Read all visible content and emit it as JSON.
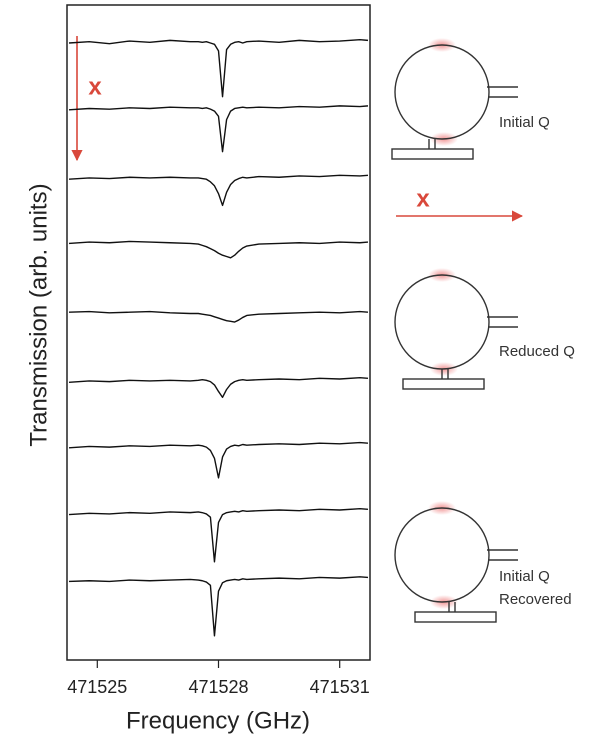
{
  "chart_data": {
    "type": "line",
    "xlabel": "Frequency (GHz)",
    "ylabel": "Transmission (arb. units)",
    "x": [
      471524.3,
      471524.8,
      471525.3,
      471525.8,
      471526.3,
      471526.8,
      471527.3,
      471527.5,
      471527.6,
      471527.7,
      471527.8,
      471527.9,
      471528.0,
      471528.1,
      471528.2,
      471528.3,
      471528.4,
      471528.5,
      471528.6,
      471528.7,
      471529.0,
      471529.5,
      471530.0,
      471530.5,
      471531.0,
      471531.5,
      471531.7
    ],
    "color": "#111111",
    "series": [
      {
        "values": [
          9.42,
          9.44,
          9.41,
          9.45,
          9.43,
          9.46,
          9.44,
          9.44,
          9.43,
          9.44,
          9.42,
          9.4,
          9.3,
          8.6,
          9.32,
          9.4,
          9.43,
          9.44,
          9.42,
          9.44,
          9.45,
          9.43,
          9.46,
          9.44,
          9.45,
          9.47,
          9.46
        ]
      },
      {
        "values": [
          8.4,
          8.42,
          8.41,
          8.43,
          8.42,
          8.44,
          8.43,
          8.43,
          8.42,
          8.43,
          8.41,
          8.38,
          8.3,
          7.76,
          8.25,
          8.38,
          8.42,
          8.43,
          8.44,
          8.43,
          8.44,
          8.43,
          8.45,
          8.44,
          8.46,
          8.45,
          8.46
        ]
      },
      {
        "values": [
          7.34,
          7.36,
          7.35,
          7.37,
          7.36,
          7.37,
          7.36,
          7.36,
          7.35,
          7.34,
          7.3,
          7.24,
          7.12,
          6.94,
          7.14,
          7.26,
          7.32,
          7.35,
          7.37,
          7.36,
          7.38,
          7.37,
          7.39,
          7.38,
          7.4,
          7.39,
          7.4
        ]
      },
      {
        "values": [
          6.36,
          6.38,
          6.37,
          6.39,
          6.38,
          6.37,
          6.36,
          6.35,
          6.33,
          6.31,
          6.28,
          6.25,
          6.21,
          6.18,
          6.16,
          6.14,
          6.18,
          6.24,
          6.29,
          6.32,
          6.35,
          6.36,
          6.37,
          6.36,
          6.38,
          6.37,
          6.38
        ]
      },
      {
        "values": [
          5.31,
          5.32,
          5.3,
          5.31,
          5.32,
          5.3,
          5.29,
          5.29,
          5.28,
          5.27,
          5.26,
          5.24,
          5.22,
          5.2,
          5.18,
          5.17,
          5.16,
          5.19,
          5.23,
          5.26,
          5.28,
          5.29,
          5.3,
          5.31,
          5.3,
          5.32,
          5.31
        ]
      },
      {
        "values": [
          4.24,
          4.26,
          4.25,
          4.27,
          4.26,
          4.27,
          4.26,
          4.27,
          4.28,
          4.27,
          4.25,
          4.2,
          4.1,
          4.01,
          4.13,
          4.21,
          4.25,
          4.27,
          4.28,
          4.27,
          4.28,
          4.29,
          4.28,
          4.3,
          4.29,
          4.31,
          4.3
        ]
      },
      {
        "values": [
          3.24,
          3.26,
          3.25,
          3.27,
          3.26,
          3.28,
          3.27,
          3.28,
          3.27,
          3.25,
          3.2,
          3.08,
          2.78,
          3.1,
          3.22,
          3.26,
          3.28,
          3.27,
          3.29,
          3.28,
          3.29,
          3.3,
          3.29,
          3.31,
          3.3,
          3.32,
          3.31
        ]
      },
      {
        "values": [
          2.22,
          2.24,
          2.23,
          2.25,
          2.24,
          2.26,
          2.25,
          2.26,
          2.25,
          2.23,
          2.18,
          1.5,
          2.1,
          2.22,
          2.25,
          2.26,
          2.27,
          2.26,
          2.28,
          2.27,
          2.28,
          2.29,
          2.28,
          2.3,
          2.29,
          2.31,
          2.3
        ]
      },
      {
        "values": [
          1.2,
          1.21,
          1.2,
          1.22,
          1.21,
          1.22,
          1.23,
          1.22,
          1.21,
          1.19,
          1.14,
          0.37,
          1.05,
          1.18,
          1.21,
          1.22,
          1.23,
          1.22,
          1.24,
          1.23,
          1.24,
          1.25,
          1.24,
          1.26,
          1.25,
          1.27,
          1.26
        ]
      }
    ],
    "xlim": [
      471524.25,
      471531.75
    ],
    "xticks": [
      471525,
      471528,
      471531
    ],
    "ylim": [
      0,
      10
    ],
    "annotations": [
      "x",
      "x"
    ],
    "schematics": [
      {
        "label_lines": [
          "Initial Q"
        ]
      },
      {
        "label_lines": [
          "Reduced Q"
        ]
      },
      {
        "label_lines": [
          "Initial Q",
          "Recovered"
        ]
      }
    ]
  }
}
